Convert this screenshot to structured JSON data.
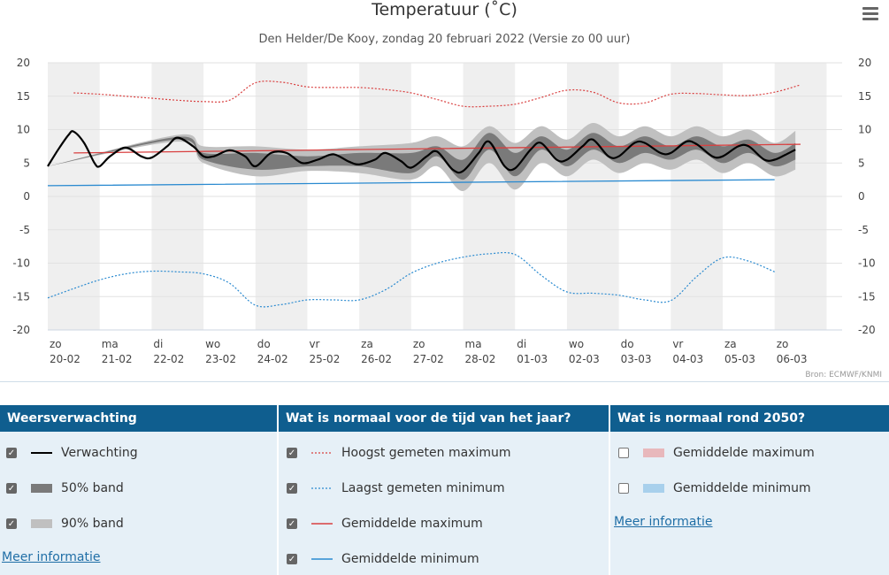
{
  "header": {
    "title": "Temperatuur (˚C)",
    "subtitle": "Den Helder/De Kooy, zondag 20 februari 2022 (Versie zo 00 uur)",
    "credit": "Bron: ECMWF/KNMI"
  },
  "chart_data": {
    "type": "line",
    "title": "Temperatuur (˚C)",
    "subtitle": "Den Helder/De Kooy, zondag 20 februari 2022 (Versie zo 00 uur)",
    "ylim": [
      -20,
      20
    ],
    "yticks": [
      20,
      15,
      10,
      5,
      0,
      -5,
      -10,
      -15,
      -20
    ],
    "xlim": [
      0,
      15.3
    ],
    "x_ticks": [
      {
        "day": "zo",
        "date": "20-02",
        "x": 0
      },
      {
        "day": "ma",
        "date": "21-02",
        "x": 1
      },
      {
        "day": "di",
        "date": "22-02",
        "x": 2
      },
      {
        "day": "wo",
        "date": "23-02",
        "x": 3
      },
      {
        "day": "do",
        "date": "24-02",
        "x": 4
      },
      {
        "day": "vr",
        "date": "25-02",
        "x": 5
      },
      {
        "day": "za",
        "date": "26-02",
        "x": 6
      },
      {
        "day": "zo",
        "date": "27-02",
        "x": 7
      },
      {
        "day": "ma",
        "date": "28-02",
        "x": 8
      },
      {
        "day": "di",
        "date": "01-03",
        "x": 9
      },
      {
        "day": "wo",
        "date": "02-03",
        "x": 10
      },
      {
        "day": "do",
        "date": "03-03",
        "x": 11
      },
      {
        "day": "vr",
        "date": "04-03",
        "x": 12
      },
      {
        "day": "za",
        "date": "05-03",
        "x": 13
      },
      {
        "day": "zo",
        "date": "06-03",
        "x": 14
      }
    ],
    "grid": true,
    "series": [
      {
        "name": "Verwachting",
        "color": "#000000",
        "style": "solid",
        "x": [
          0,
          0.2,
          0.4,
          0.5,
          0.7,
          0.9,
          1.0,
          1.2,
          1.5,
          1.8,
          2.0,
          2.3,
          2.5,
          2.8,
          3.0,
          3.2,
          3.5,
          3.8,
          4.0,
          4.3,
          4.6,
          4.9,
          5.2,
          5.5,
          5.8,
          6.0,
          6.3,
          6.5,
          6.8,
          7.0,
          7.3,
          7.5,
          7.8,
          8.0,
          8.3,
          8.5,
          8.8,
          9.0,
          9.3,
          9.5,
          9.8,
          10.0,
          10.3,
          10.5,
          10.8,
          11.0,
          11.3,
          11.5,
          11.8,
          12.0,
          12.3,
          12.5,
          12.8,
          13.0,
          13.3,
          13.5,
          13.8,
          14.0,
          14.2,
          14.4
        ],
        "values": [
          4.5,
          7.0,
          9.2,
          9.7,
          8.0,
          5.0,
          4.5,
          6.0,
          7.3,
          6.0,
          5.8,
          7.5,
          8.8,
          7.5,
          6.0,
          6.0,
          6.9,
          6.0,
          4.5,
          6.5,
          6.5,
          5.0,
          5.5,
          6.3,
          5.2,
          4.8,
          5.5,
          6.5,
          5.3,
          4.3,
          6.0,
          6.7,
          4.0,
          3.8,
          6.5,
          8.2,
          4.5,
          4.2,
          7.0,
          8.0,
          5.5,
          5.5,
          7.5,
          8.5,
          6.0,
          6.0,
          8.0,
          8.0,
          6.5,
          6.5,
          8.2,
          7.8,
          6.0,
          6.0,
          7.5,
          7.5,
          5.5,
          5.5,
          6.2,
          7.0
        ]
      },
      {
        "name": "50% band",
        "color": "#7a7a7a",
        "type": "band",
        "x": [
          0,
          2.5,
          3.0,
          4.0,
          5.0,
          6.0,
          7.0,
          7.5,
          8.0,
          8.5,
          9.0,
          9.5,
          10.0,
          10.5,
          11.0,
          11.5,
          12.0,
          12.5,
          13.0,
          13.5,
          14.0,
          14.4
        ],
        "lower": [
          4.5,
          8.5,
          5.5,
          4.0,
          4.5,
          4.5,
          3.5,
          6.0,
          2.5,
          7.0,
          3.0,
          7.0,
          4.5,
          7.0,
          5.0,
          6.5,
          5.5,
          7.0,
          5.0,
          6.5,
          4.5,
          5.5
        ],
        "upper": [
          4.5,
          8.9,
          6.5,
          6.5,
          6.0,
          6.5,
          6.5,
          7.5,
          5.5,
          9.5,
          6.5,
          9.0,
          7.0,
          9.5,
          7.5,
          9.0,
          7.5,
          9.0,
          7.5,
          8.5,
          6.5,
          8.0
        ]
      },
      {
        "name": "90% band",
        "color": "#c0c0c0",
        "type": "band",
        "x": [
          0,
          2.5,
          3.0,
          4.0,
          5.0,
          6.0,
          7.0,
          7.5,
          8.0,
          8.5,
          9.0,
          9.5,
          10.0,
          10.5,
          11.0,
          11.5,
          12.0,
          12.5,
          13.0,
          13.5,
          14.0,
          14.4
        ],
        "lower": [
          4.5,
          8.2,
          5.0,
          3.0,
          3.8,
          3.5,
          2.5,
          4.5,
          0.8,
          5.0,
          1.0,
          5.0,
          3.0,
          5.5,
          3.5,
          5.0,
          4.0,
          5.5,
          3.5,
          5.0,
          3.0,
          4.0
        ],
        "upper": [
          4.5,
          9.2,
          7.5,
          7.5,
          7.0,
          7.5,
          8.0,
          9.0,
          7.5,
          10.5,
          8.0,
          10.5,
          8.5,
          11.0,
          9.0,
          10.5,
          9.0,
          10.5,
          9.0,
          10.0,
          8.0,
          9.8
        ]
      },
      {
        "name": "Hoogst gemeten maximum",
        "color": "#d94040",
        "style": "dotted",
        "x": [
          0.5,
          1.0,
          1.5,
          2.0,
          2.5,
          3.0,
          3.5,
          4.0,
          4.5,
          5.0,
          5.5,
          6.0,
          6.5,
          7.0,
          7.5,
          8.0,
          8.5,
          9.0,
          9.5,
          10.0,
          10.5,
          11.0,
          11.5,
          12.0,
          12.5,
          13.0,
          13.5,
          14.0,
          14.5
        ],
        "values": [
          15.5,
          15.3,
          15.0,
          14.7,
          14.4,
          14.2,
          14.4,
          17.0,
          17.1,
          16.4,
          16.3,
          16.3,
          16.0,
          15.5,
          14.5,
          13.5,
          13.5,
          13.8,
          14.8,
          15.9,
          15.6,
          14.0,
          14.0,
          15.3,
          15.4,
          15.2,
          15.1,
          15.6,
          16.7
        ]
      },
      {
        "name": "Laagst gemeten minimum",
        "color": "#2a8ad0",
        "style": "dotted",
        "x": [
          0,
          0.5,
          1.0,
          1.5,
          2.0,
          2.5,
          3.0,
          3.5,
          4.0,
          4.5,
          5.0,
          5.5,
          6.0,
          6.5,
          7.0,
          7.5,
          8.0,
          8.5,
          9.0,
          9.5,
          10.0,
          10.5,
          11.0,
          11.5,
          12.0,
          12.5,
          13.0,
          13.5,
          14.0
        ],
        "values": [
          -15.2,
          -13.8,
          -12.5,
          -11.6,
          -11.2,
          -11.3,
          -11.6,
          -13.0,
          -16.3,
          -16.2,
          -15.5,
          -15.5,
          -15.5,
          -14.0,
          -11.5,
          -10.0,
          -9.1,
          -8.6,
          -8.7,
          -11.8,
          -14.3,
          -14.5,
          -14.8,
          -15.5,
          -15.6,
          -12.0,
          -9.2,
          -9.7,
          -11.3
        ]
      },
      {
        "name": "Gemiddelde maximum",
        "color": "#d94040",
        "style": "solid",
        "x": [
          0.5,
          14.5
        ],
        "values": [
          6.5,
          7.8
        ]
      },
      {
        "name": "Gemiddelde minimum",
        "color": "#2a8ad0",
        "style": "solid",
        "x": [
          0,
          14.0
        ],
        "values": [
          1.6,
          2.5
        ]
      }
    ]
  },
  "legend": {
    "col1": {
      "heading": "Weersverwachting",
      "items": [
        {
          "label": "Verwachting",
          "checked": true,
          "swatch": "line-black"
        },
        {
          "label": "50% band",
          "checked": true,
          "swatch": "box-dark"
        },
        {
          "label": "90% band",
          "checked": true,
          "swatch": "box-light"
        }
      ],
      "link": "Meer informatie"
    },
    "col2": {
      "heading": "Wat is normaal voor de tijd van het jaar?",
      "items": [
        {
          "label": "Hoogst gemeten maximum",
          "checked": true,
          "swatch": "dotted-red"
        },
        {
          "label": "Laagst gemeten minimum",
          "checked": true,
          "swatch": "dotted-blue"
        },
        {
          "label": "Gemiddelde maximum",
          "checked": true,
          "swatch": "line-red"
        },
        {
          "label": "Gemiddelde minimum",
          "checked": true,
          "swatch": "line-blue"
        }
      ]
    },
    "col3": {
      "heading": "Wat is normaal rond 2050?",
      "items": [
        {
          "label": "Gemiddelde maximum",
          "checked": false,
          "swatch": "box-pink"
        },
        {
          "label": "Gemiddelde minimum",
          "checked": false,
          "swatch": "box-lightblue"
        }
      ],
      "link": "Meer informatie"
    }
  },
  "colors": {
    "header_bg": "#0f5e8f",
    "legend_bg": "#e6f0f7",
    "link": "#1f6ea6",
    "grid": "#e2e2e2",
    "alt_day": "#efefef"
  }
}
